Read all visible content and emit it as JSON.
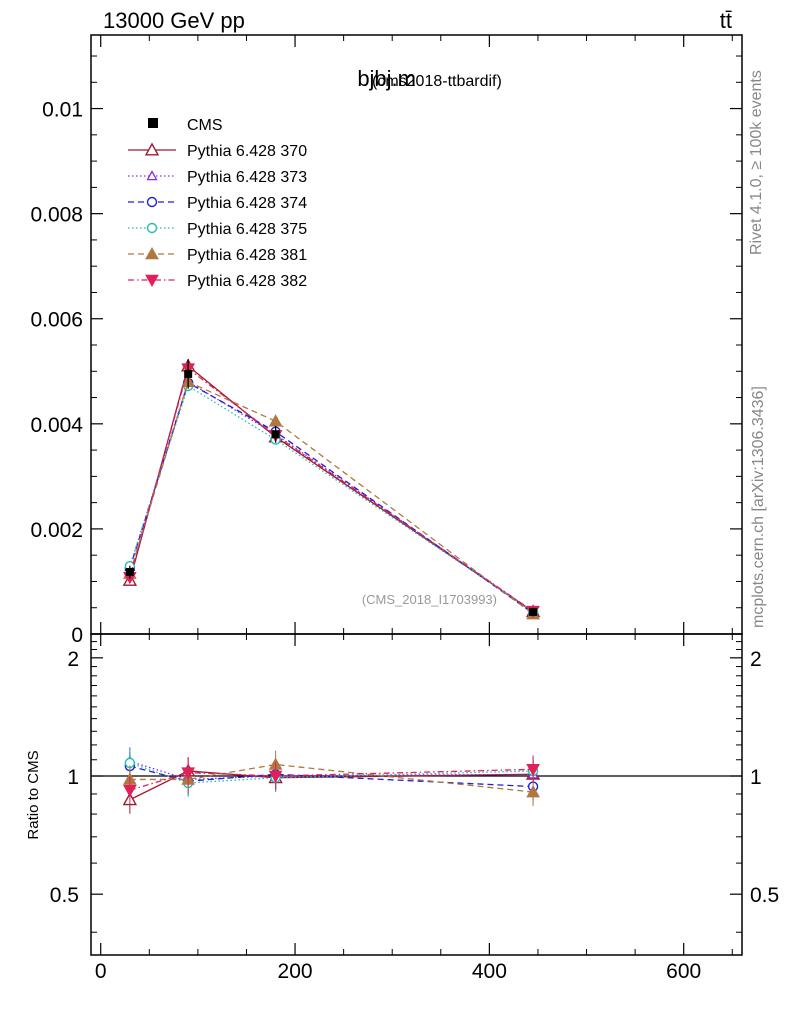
{
  "header": {
    "energy_label": "13000 GeV pp",
    "process_label": "tt̄"
  },
  "side_labels": {
    "rivet": "Rivet 4.1.0, ≥ 100k events",
    "mcplots": "mcplots.cern.ch [arXiv:1306.3436]"
  },
  "chart_data": {
    "type": "line",
    "title": "bjbj.m",
    "subtitle": "(cms2018-ttbardif)",
    "analysis_label": "(CMS_2018_I1703993)",
    "x": [
      30,
      90,
      180,
      445
    ],
    "xlim": [
      -10,
      660
    ],
    "xticks": [
      0,
      200,
      400,
      600
    ],
    "main": {
      "ylim": [
        0,
        0.0114
      ],
      "yticks": [
        0,
        0.002,
        0.004,
        0.006,
        0.008,
        0.01
      ],
      "ytick_labels": [
        "0",
        "0.002",
        "0.004",
        "0.006",
        "0.008",
        "0.01"
      ]
    },
    "ratio": {
      "ylabel": "Ratio to CMS",
      "ylim": [
        0.35,
        2.3
      ],
      "yticks": [
        0.5,
        1,
        2
      ],
      "ytick_labels": [
        "0.5",
        "1",
        "2"
      ]
    },
    "data": {
      "name": "CMS",
      "values": [
        0.00118,
        0.00495,
        0.0038,
        0.00042
      ],
      "errors": [
        0.00012,
        0.00028,
        0.00016,
        4e-05
      ]
    },
    "series": [
      {
        "name": "Pythia 6.428 370",
        "color": "#9b1b30",
        "marker": "triangle-open",
        "dash": "solid",
        "values": [
          0.00102,
          0.0051,
          0.00375,
          0.000425
        ],
        "ratio": [
          0.87,
          1.03,
          0.99,
          1.01
        ]
      },
      {
        "name": "Pythia 6.428 373",
        "color": "#8a2be2",
        "marker": "triangle-open-small",
        "dash": "dotted",
        "values": [
          0.00128,
          0.0048,
          0.0038,
          0.000425
        ],
        "ratio": [
          1.09,
          0.98,
          1.0,
          1.01
        ]
      },
      {
        "name": "Pythia 6.428 374",
        "color": "#1f1fd6",
        "marker": "circle-open",
        "dash": "dashed",
        "values": [
          0.00125,
          0.00478,
          0.00385,
          0.000395
        ],
        "ratio": [
          1.06,
          0.97,
          1.01,
          0.94
        ]
      },
      {
        "name": "Pythia 6.428 375",
        "color": "#20c0b0",
        "marker": "circle-open",
        "dash": "dotted",
        "values": [
          0.00129,
          0.00472,
          0.0037,
          0.00043
        ],
        "ratio": [
          1.08,
          0.96,
          0.99,
          1.03
        ]
      },
      {
        "name": "Pythia 6.428 381",
        "color": "#b07840",
        "marker": "triangle-filled",
        "dash": "dashed",
        "values": [
          0.00115,
          0.0048,
          0.00405,
          0.00038
        ],
        "ratio": [
          0.98,
          0.98,
          1.07,
          0.91
        ]
      },
      {
        "name": "Pythia 6.428 382",
        "color": "#e0205a",
        "marker": "triangle-down-filled",
        "dash": "dashdot",
        "values": [
          0.00108,
          0.00505,
          0.00378,
          0.000435
        ],
        "ratio": [
          0.92,
          1.02,
          1.0,
          1.04
        ]
      }
    ]
  }
}
